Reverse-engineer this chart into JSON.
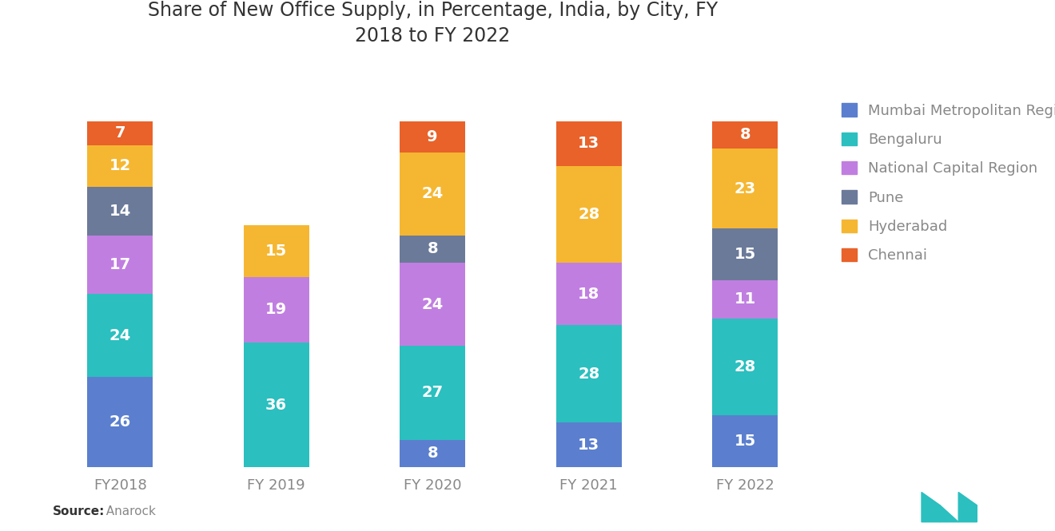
{
  "title": "Share of New Office Supply, in Percentage, India, by City, FY\n2018 to FY 2022",
  "categories": [
    "FY2018",
    "FY 2019",
    "FY 2020",
    "FY 2021",
    "FY 2022"
  ],
  "series": [
    {
      "name": "Mumbai Metropolitan Region",
      "color": "#5b7fce",
      "values": [
        26,
        0,
        8,
        13,
        15
      ]
    },
    {
      "name": "Bengaluru",
      "color": "#2bbfbf",
      "values": [
        24,
        36,
        27,
        28,
        28
      ]
    },
    {
      "name": "National Capital Region",
      "color": "#c07fe0",
      "values": [
        17,
        19,
        24,
        18,
        11
      ]
    },
    {
      "name": "Pune",
      "color": "#6b7a99",
      "values": [
        14,
        0,
        8,
        0,
        15
      ]
    },
    {
      "name": "Hyderabad",
      "color": "#f5b731",
      "values": [
        12,
        15,
        24,
        28,
        23
      ]
    },
    {
      "name": "Chennai",
      "color": "#e8622a",
      "values": [
        7,
        0,
        9,
        13,
        8
      ]
    }
  ],
  "source_label_bold": "Source:",
  "source_label_normal": "  Anarock",
  "background_color": "#ffffff",
  "text_color": "#888888",
  "title_color": "#333333",
  "title_fontsize": 17,
  "label_fontsize": 14,
  "tick_fontsize": 13,
  "legend_fontsize": 13,
  "bar_width": 0.42,
  "logo_color": "#2bbfbf"
}
